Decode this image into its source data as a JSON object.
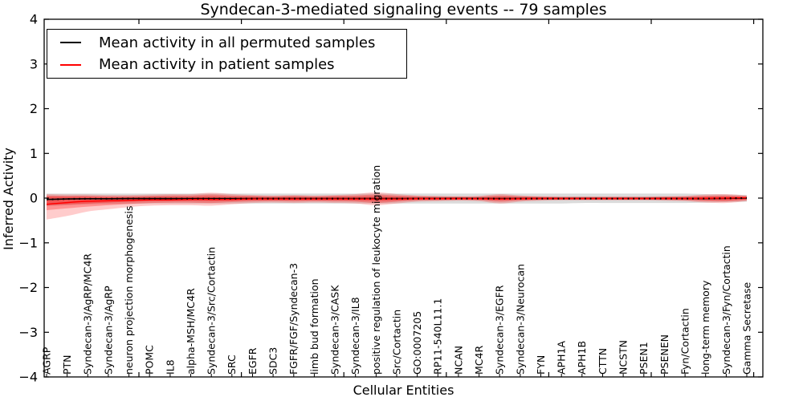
{
  "chart_data": {
    "type": "line",
    "title": "Syndecan-3-mediated signaling events -- 79 samples",
    "xlabel": "Cellular Entities",
    "ylabel": "Inferred Activity",
    "ylim": [
      -4,
      4
    ],
    "grid": false,
    "legend_position": "upper-left",
    "yticks": [
      {
        "label": "4",
        "value": 4
      },
      {
        "label": "3",
        "value": 3
      },
      {
        "label": "2",
        "value": 2
      },
      {
        "label": "1",
        "value": 1
      },
      {
        "label": "0",
        "value": 0
      },
      {
        "label": "−1",
        "value": -1
      },
      {
        "label": "−2",
        "value": -2
      },
      {
        "label": "−3",
        "value": -3
      },
      {
        "label": "−4",
        "value": -4
      }
    ],
    "categories": [
      "AGRP",
      "PTN",
      "Syndecan-3/AgRP/MC4R",
      "Syndecan-3/AgRP",
      "neuron projection morphogenesis",
      "POMC",
      "IL8",
      "alpha-MSH/MC4R",
      "Syndecan-3/Src/Cortactin",
      "SRC",
      "EGFR",
      "SDC3",
      "FGFR/FGF/Syndecan-3",
      "limb bud formation",
      "Syndecan-3/CASK",
      "Syndecan-3/IL8",
      "positive regulation of leukocyte migration",
      "Src/Cortactin",
      "GO:0007205",
      "RP11-540L11.1",
      "NCAN",
      "MC4R",
      "Syndecan-3/EGFR",
      "Syndecan-3/Neurocan",
      "FYN",
      "APH1A",
      "APH1B",
      "CTTN",
      "NCSTN",
      "PSEN1",
      "PSENEN",
      "Fyn/Cortactin",
      "long-term memory",
      "Syndecan-3/Fyn/Cortactin",
      "Gamma Secretase"
    ],
    "series": [
      {
        "name": "Mean activity in all permuted samples",
        "color": "#000000",
        "line_style": "solid-with-dotted-overlay",
        "mean": [
          -0.03,
          -0.02,
          -0.015,
          -0.015,
          -0.01,
          -0.01,
          -0.01,
          -0.01,
          -0.01,
          -0.01,
          -0.01,
          -0.01,
          -0.01,
          -0.01,
          -0.01,
          -0.01,
          -0.01,
          -0.01,
          -0.01,
          -0.01,
          -0.01,
          -0.01,
          -0.01,
          -0.01,
          -0.01,
          -0.01,
          -0.01,
          -0.01,
          -0.01,
          -0.01,
          -0.01,
          -0.01,
          -0.01,
          -0.005,
          0.0
        ],
        "band": {
          "fill": "rgba(110,110,110,0.25)",
          "upper": [
            0.1,
            0.1,
            0.1,
            0.1,
            0.1,
            0.1,
            0.1,
            0.1,
            0.1,
            0.1,
            0.1,
            0.1,
            0.1,
            0.1,
            0.1,
            0.1,
            0.1,
            0.1,
            0.1,
            0.1,
            0.1,
            0.1,
            0.1,
            0.1,
            0.1,
            0.1,
            0.1,
            0.1,
            0.1,
            0.1,
            0.1,
            0.1,
            0.09,
            0.08,
            0.07
          ],
          "lower": [
            -0.18,
            -0.16,
            -0.14,
            -0.13,
            -0.13,
            -0.12,
            -0.12,
            -0.12,
            -0.12,
            -0.12,
            -0.12,
            -0.12,
            -0.12,
            -0.12,
            -0.12,
            -0.12,
            -0.12,
            -0.12,
            -0.12,
            -0.12,
            -0.12,
            -0.12,
            -0.12,
            -0.12,
            -0.12,
            -0.12,
            -0.11,
            -0.11,
            -0.11,
            -0.11,
            -0.11,
            -0.11,
            -0.1,
            -0.09,
            -0.08
          ]
        }
      },
      {
        "name": "Mean activity in patient samples",
        "color": "#ff0000",
        "line_style": "solid",
        "mean": [
          -0.14,
          -0.1,
          -0.07,
          -0.06,
          -0.05,
          -0.04,
          -0.04,
          -0.03,
          -0.03,
          -0.03,
          -0.02,
          -0.02,
          -0.02,
          -0.02,
          -0.02,
          -0.02,
          -0.02,
          -0.02,
          -0.015,
          -0.015,
          -0.015,
          -0.015,
          -0.02,
          -0.015,
          -0.01,
          -0.01,
          -0.01,
          -0.01,
          -0.01,
          -0.01,
          -0.01,
          -0.01,
          -0.005,
          0.0,
          0.01
        ],
        "band_outer": {
          "fill": "rgba(255,0,0,0.20)",
          "upper": [
            0.09,
            0.08,
            0.08,
            0.07,
            0.07,
            0.08,
            0.09,
            0.09,
            0.12,
            0.09,
            0.07,
            0.06,
            0.07,
            0.06,
            0.07,
            0.09,
            0.13,
            0.09,
            0.06,
            0.05,
            0.04,
            0.05,
            0.09,
            0.06,
            0.04,
            0.035,
            0.035,
            0.035,
            0.035,
            0.035,
            0.04,
            0.05,
            0.08,
            0.09,
            0.06
          ],
          "lower": [
            -0.48,
            -0.4,
            -0.3,
            -0.25,
            -0.2,
            -0.17,
            -0.16,
            -0.16,
            -0.17,
            -0.14,
            -0.11,
            -0.1,
            -0.11,
            -0.1,
            -0.11,
            -0.12,
            -0.16,
            -0.12,
            -0.08,
            -0.07,
            -0.06,
            -0.07,
            -0.12,
            -0.08,
            -0.06,
            -0.05,
            -0.05,
            -0.05,
            -0.05,
            -0.05,
            -0.06,
            -0.07,
            -0.1,
            -0.11,
            -0.07
          ]
        },
        "band_inner": {
          "fill": "rgba(255,0,0,0.28)",
          "upper": [
            0.06,
            0.05,
            0.05,
            0.04,
            0.04,
            0.05,
            0.06,
            0.06,
            0.08,
            0.06,
            0.05,
            0.04,
            0.05,
            0.04,
            0.05,
            0.06,
            0.08,
            0.06,
            0.04,
            0.03,
            0.03,
            0.03,
            0.06,
            0.04,
            0.03,
            0.025,
            0.025,
            0.025,
            0.025,
            0.025,
            0.03,
            0.035,
            0.05,
            0.06,
            0.04
          ],
          "lower": [
            -0.27,
            -0.23,
            -0.19,
            -0.16,
            -0.13,
            -0.11,
            -0.1,
            -0.1,
            -0.11,
            -0.09,
            -0.075,
            -0.07,
            -0.075,
            -0.07,
            -0.075,
            -0.08,
            -0.11,
            -0.08,
            -0.055,
            -0.05,
            -0.04,
            -0.05,
            -0.08,
            -0.055,
            -0.04,
            -0.035,
            -0.035,
            -0.035,
            -0.035,
            -0.035,
            -0.04,
            -0.05,
            -0.07,
            -0.075,
            -0.05
          ]
        },
        "band_core": {
          "fill": "rgba(255,0,0,0.32)",
          "upper": [
            0.03,
            0.03,
            0.03,
            0.025,
            0.025,
            0.03,
            0.03,
            0.03,
            0.04,
            0.03,
            0.03,
            0.025,
            0.03,
            0.025,
            0.03,
            0.03,
            0.04,
            0.03,
            0.025,
            0.02,
            0.02,
            0.02,
            0.03,
            0.025,
            0.02,
            0.015,
            0.015,
            0.015,
            0.015,
            0.015,
            0.02,
            0.02,
            0.03,
            0.035,
            0.025
          ],
          "lower": [
            -0.16,
            -0.14,
            -0.12,
            -0.1,
            -0.08,
            -0.07,
            -0.065,
            -0.06,
            -0.065,
            -0.06,
            -0.05,
            -0.05,
            -0.05,
            -0.05,
            -0.05,
            -0.055,
            -0.065,
            -0.055,
            -0.04,
            -0.035,
            -0.03,
            -0.035,
            -0.05,
            -0.04,
            -0.03,
            -0.028,
            -0.028,
            -0.028,
            -0.028,
            -0.028,
            -0.03,
            -0.035,
            -0.045,
            -0.05,
            -0.035
          ]
        }
      }
    ]
  },
  "legend": {
    "items": [
      {
        "label": "Mean activity in all permuted samples",
        "color": "#000000"
      },
      {
        "label": "Mean activity in patient samples",
        "color": "#ff0000"
      }
    ]
  }
}
